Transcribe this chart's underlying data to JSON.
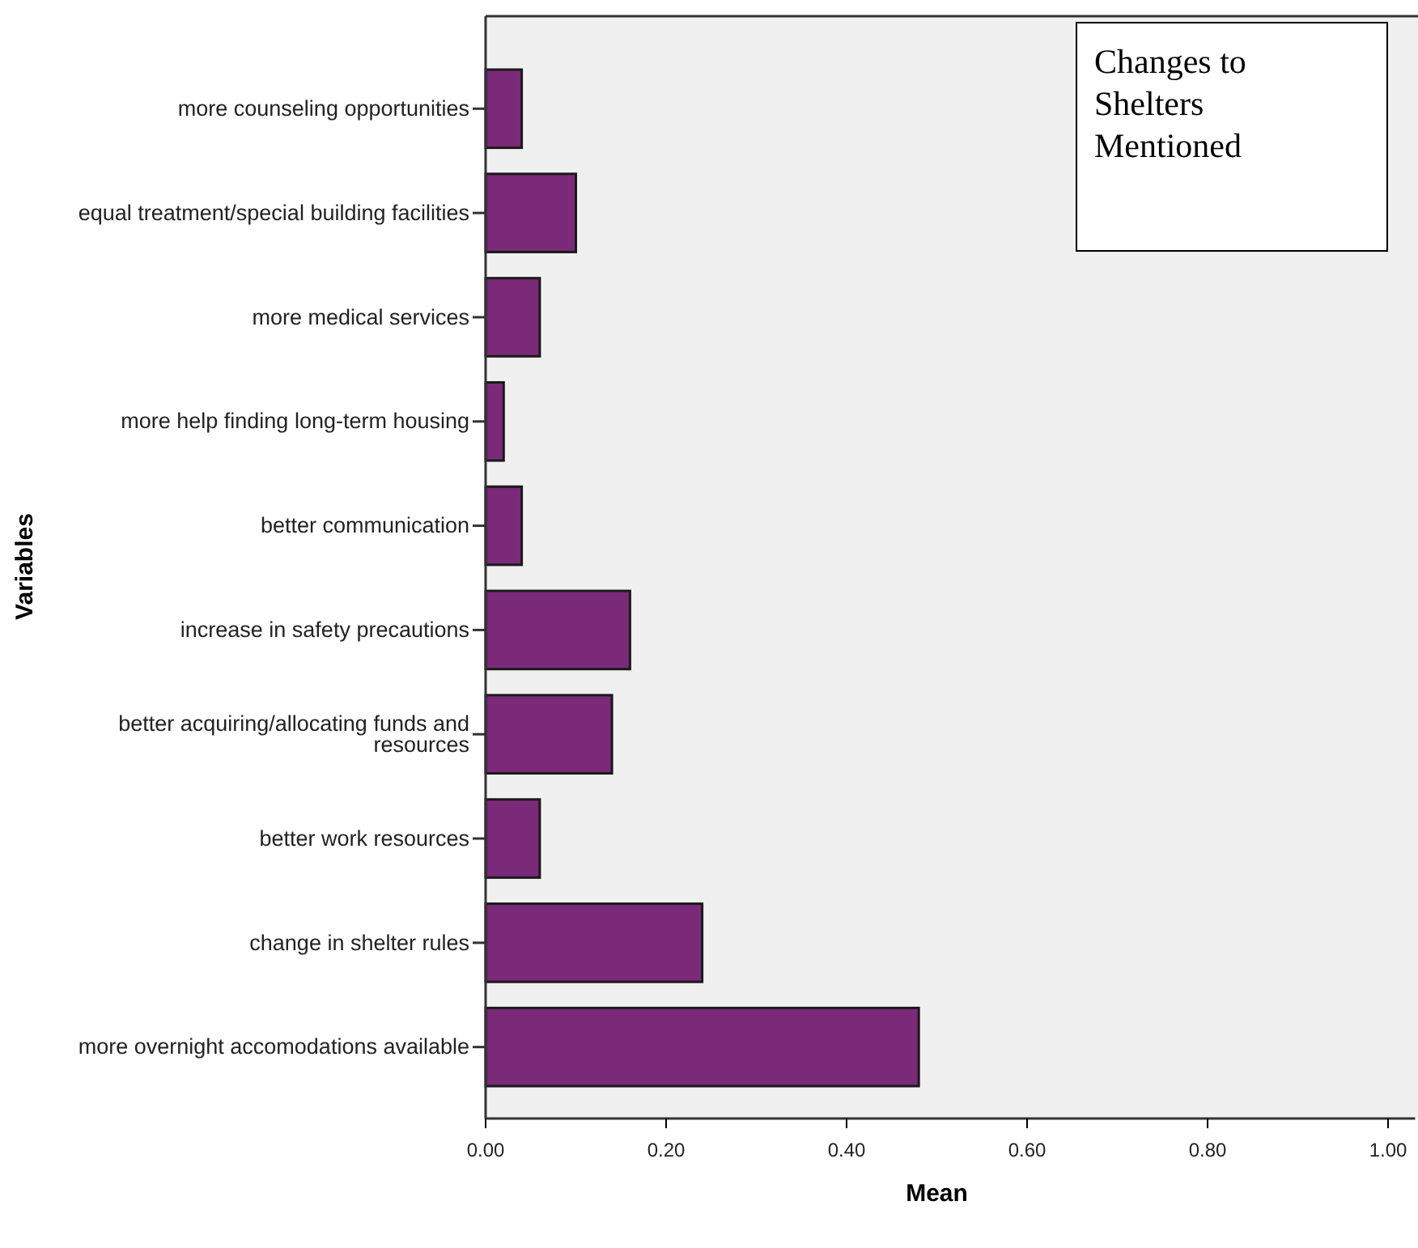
{
  "chart_data": {
    "type": "bar",
    "orientation": "horizontal",
    "xlabel": "Mean",
    "ylabel": "Variables",
    "categories": [
      "more counseling opportunities",
      "equal treatment/special building facilities",
      "more medical services",
      "more help finding long-term housing",
      "better communication",
      "increase in safety precautions",
      "better acquiring/allocating funds and resources",
      "better work resources",
      "change in shelter rules",
      "more overnight accomodations available"
    ],
    "values": [
      0.04,
      0.1,
      0.06,
      0.02,
      0.04,
      0.16,
      0.14,
      0.06,
      0.24,
      0.48
    ],
    "color": "#7b2979",
    "xlim": [
      0,
      1.03
    ],
    "xticks": [
      {
        "value": 0,
        "label": "0.00"
      },
      {
        "value": 0.2,
        "label": "0.20"
      },
      {
        "value": 0.4,
        "label": "0.40"
      },
      {
        "value": 0.6,
        "label": "0.60"
      },
      {
        "value": 0.8,
        "label": "0.80"
      },
      {
        "value": 1,
        "label": "1.00"
      }
    ],
    "annotations": [
      "Changes to Shelters Mentioned"
    ]
  }
}
